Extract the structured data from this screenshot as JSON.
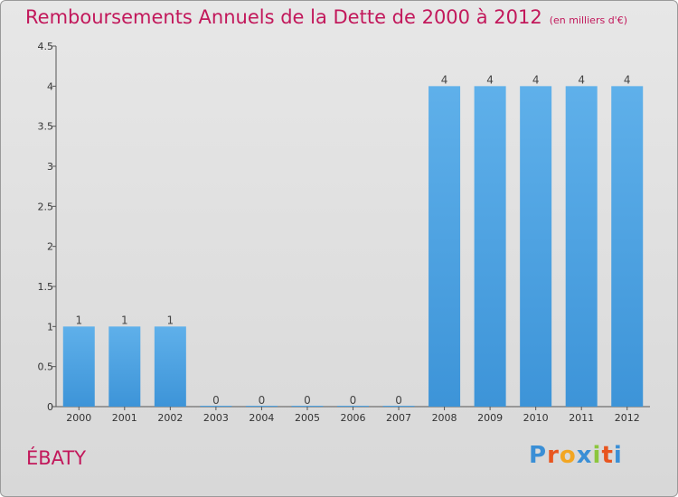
{
  "header": {
    "title": "Remboursements Annuels de la Dette de 2000 à 2012",
    "subtitle": "(en milliers d'€)"
  },
  "footer": {
    "town": "ÉBATY",
    "logo_letters": [
      "P",
      "r",
      "o",
      "x",
      "i",
      "t",
      "i"
    ],
    "logo_colors": [
      "#3a8fd6",
      "#e8551f",
      "#f2a623",
      "#3a8fd6",
      "#8cc63e",
      "#e8551f",
      "#3a8fd6"
    ]
  },
  "chart_data": {
    "type": "bar",
    "categories": [
      "2000",
      "2001",
      "2002",
      "2003",
      "2004",
      "2005",
      "2006",
      "2007",
      "2008",
      "2009",
      "2010",
      "2011",
      "2012"
    ],
    "values": [
      1,
      1,
      1,
      0,
      0,
      0,
      0,
      0,
      4,
      4,
      4,
      4,
      4
    ],
    "data_labels": [
      "1",
      "1",
      "1",
      "0",
      "0",
      "0",
      "0",
      "0",
      "4",
      "4",
      "4",
      "4",
      "4"
    ],
    "yticks": [
      "0",
      "0.5",
      "1",
      "1.5",
      "2",
      "2.5",
      "3",
      "3.5",
      "4",
      "4.5"
    ],
    "ylim": [
      0,
      4.5
    ],
    "grid": false,
    "bar_color": "#3d94d8",
    "bar_color_light": "#5fb0ea"
  }
}
